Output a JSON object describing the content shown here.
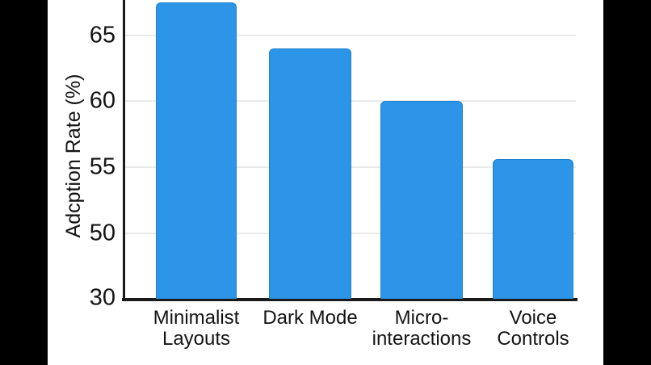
{
  "window": {
    "letterbox_color": "#000000",
    "panel_color": "#ffffff"
  },
  "chart_data": {
    "type": "bar",
    "ylabel": "Adcption Rate (%)",
    "xlabel": "",
    "categories": [
      "Minimalist Layouts",
      "Dark Mode",
      "Micro-interactions",
      "Voice Controls"
    ],
    "category_lines": [
      [
        "Minimalist",
        "Layouts"
      ],
      [
        "Dark Mode"
      ],
      [
        "Micro-",
        "interactions"
      ],
      [
        "Voice",
        "Controls"
      ]
    ],
    "values": [
      67.5,
      64,
      60,
      55.6
    ],
    "value_unit": "%",
    "ytick_labels": [
      "65",
      "60",
      "55",
      "50",
      "30"
    ],
    "ytick_values": [
      65,
      60,
      55,
      50,
      30
    ],
    "ylim_visible": [
      30,
      67.5
    ],
    "axis_notes": "y-axis is nonlinear: 30 sits at the baseline, then 50, 55, 60, 65 are evenly spaced; top of chart (and tallest bar top region) is cropped by the viewport",
    "grid": true,
    "legend_position": "none",
    "bar_color": "#2D95E8",
    "grid_color": "#eaeaea",
    "axis_color": "#1a1a1a",
    "text_color": "#141414"
  }
}
